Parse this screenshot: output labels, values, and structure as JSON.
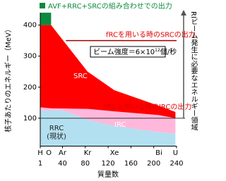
{
  "chart_data": {
    "type": "area",
    "annotation_top": "AVF+RRC+SRCの組み合わせでの出力",
    "y_label": "核子あたりのエネルギー（MeV）",
    "x_label": "質量数",
    "xlim": [
      1,
      240
    ],
    "ylim": [
      10,
      440
    ],
    "xticks": [
      1,
      40,
      80,
      120,
      160,
      200,
      240
    ],
    "yticks": [
      100,
      200,
      300,
      400
    ],
    "elements": {
      "labels": [
        "H",
        "O",
        "Ar",
        "Kr",
        "Xe",
        "Bi",
        "U"
      ],
      "x": [
        1,
        16,
        40,
        84,
        131,
        209,
        238
      ]
    },
    "series": [
      {
        "name": "RRC",
        "sublabel": "(現状)",
        "color": "#b3e0f0",
        "x": [
          1,
          40,
          84,
          131,
          209,
          238
        ],
        "top": [
          125,
          125,
          95,
          75,
          55,
          50
        ],
        "bottom": [
          10,
          10,
          10,
          10,
          10,
          10
        ]
      },
      {
        "name": "IRC",
        "color": "#ffb8dc",
        "x": [
          1,
          40,
          84,
          131,
          209,
          238
        ],
        "top": [
          135,
          135,
          130,
          122,
          110,
          100
        ],
        "bottom": [
          125,
          125,
          95,
          75,
          55,
          50
        ]
      },
      {
        "name": "SRC",
        "color": "#ff0000",
        "x": [
          1,
          20,
          84,
          131,
          209,
          238
        ],
        "top": [
          400,
          400,
          250,
          190,
          140,
          120
        ],
        "bottom": [
          135,
          132,
          130,
          122,
          110,
          100
        ]
      },
      {
        "color": "#0a8a3c",
        "x": [
          1,
          20
        ],
        "top": [
          440,
          440
        ],
        "bottom": [
          400,
          400
        ]
      }
    ],
    "src_line": {
      "label": "fRCを用いる時のSRCの出力",
      "value": 350,
      "x": [
        46,
        240
      ],
      "color": "#a00000"
    },
    "irc_line": {
      "label": "fRCを用いる時のIRCの出力",
      "value": 100,
      "x": [
        1,
        240
      ]
    },
    "intensity": {
      "pre": "ビーム強度＝6×10",
      "sup": "12",
      "post": "個/秒"
    },
    "ri_note": "RIビーム発生に必要なエネルギー領域"
  }
}
